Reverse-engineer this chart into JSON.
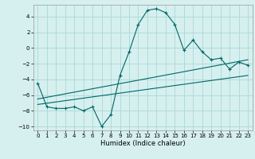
{
  "title": "",
  "xlabel": "Humidex (Indice chaleur)",
  "ylabel": "",
  "background_color": "#d6f0ef",
  "grid_color": "#aad8d8",
  "line_color": "#006666",
  "xlim": [
    -0.5,
    23.5
  ],
  "ylim": [
    -10.5,
    5.5
  ],
  "yticks": [
    4,
    2,
    0,
    -2,
    -4,
    -6,
    -8,
    -10
  ],
  "xticks": [
    0,
    1,
    2,
    3,
    4,
    5,
    6,
    7,
    8,
    9,
    10,
    11,
    12,
    13,
    14,
    15,
    16,
    17,
    18,
    19,
    20,
    21,
    22,
    23
  ],
  "main_x": [
    0,
    1,
    2,
    3,
    4,
    5,
    6,
    7,
    8,
    9,
    10,
    11,
    12,
    13,
    14,
    15,
    16,
    17,
    18,
    19,
    20,
    21,
    22,
    23
  ],
  "main_y": [
    -4.5,
    -7.5,
    -7.7,
    -7.7,
    -7.5,
    -8.0,
    -7.5,
    -10.0,
    -8.5,
    -3.5,
    -0.5,
    3.0,
    4.8,
    5.0,
    4.5,
    3.0,
    -0.3,
    1.0,
    -0.5,
    -1.5,
    -1.3,
    -2.7,
    -1.8,
    -2.2
  ],
  "line1_x": [
    0,
    23
  ],
  "line1_y": [
    -7.2,
    -3.5
  ],
  "line2_x": [
    0,
    23
  ],
  "line2_y": [
    -6.5,
    -1.5
  ]
}
